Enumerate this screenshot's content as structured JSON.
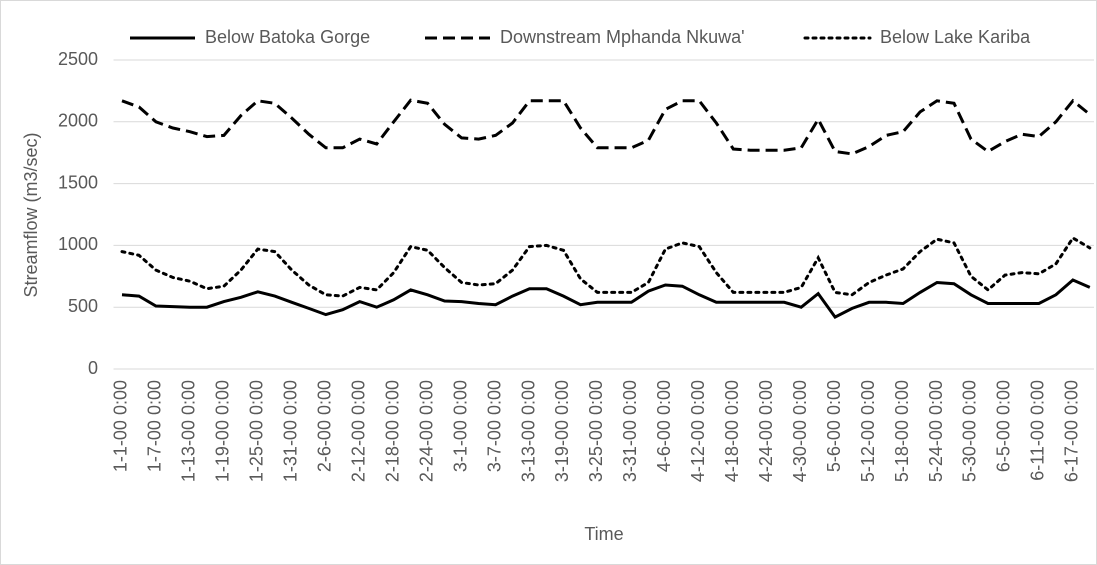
{
  "chart_data": {
    "type": "line",
    "ylabel": "Streamflow (m3/sec)",
    "xlabel": "Time",
    "categories": [
      "1-1-00 0:00",
      null,
      "1-7-00 0:00",
      null,
      "1-13-00 0:00",
      null,
      "1-19-00 0:00",
      null,
      "1-25-00 0:00",
      null,
      "1-31-00 0:00",
      null,
      "2-6-00 0:00",
      null,
      "2-12-00 0:00",
      null,
      "2-18-00 0:00",
      null,
      "2-24-00 0:00",
      null,
      "3-1-00 0:00",
      null,
      "3-7-00 0:00",
      null,
      "3-13-00 0:00",
      null,
      "3-19-00 0:00",
      null,
      "3-25-00 0:00",
      null,
      "3-31-00 0:00",
      null,
      "4-6-00 0:00",
      null,
      "4-12-00 0:00",
      null,
      "4-18-00 0:00",
      null,
      "4-24-00 0:00",
      null,
      "4-30-00 0:00",
      null,
      "5-6-00 0:00",
      null,
      "5-12-00 0:00",
      null,
      "5-18-00 0:00",
      null,
      "5-24-00 0:00",
      null,
      "5-30-00 0:00",
      null,
      "6-5-00 0:00",
      null,
      "6-11-00 0:00",
      null,
      "6-17-00 0:00",
      null
    ],
    "series": [
      {
        "name": "Below Batoka Gorge",
        "color": "#000000",
        "dash": "solid",
        "values": [
          600,
          590,
          510,
          505,
          500,
          500,
          545,
          580,
          625,
          590,
          540,
          490,
          440,
          480,
          545,
          500,
          560,
          640,
          600,
          550,
          545,
          530,
          520,
          590,
          650,
          650,
          590,
          520,
          540,
          540,
          540,
          630,
          680,
          670,
          600,
          540,
          540,
          540,
          540,
          540,
          500,
          610,
          420,
          490,
          540,
          540,
          530,
          620,
          700,
          690,
          600,
          530,
          530,
          530,
          530,
          600,
          720,
          660
        ]
      },
      {
        "name": "Downstream Mphanda Nkuwa'",
        "color": "#000000",
        "dash": "dashed",
        "values": [
          2170,
          2120,
          2000,
          1950,
          1920,
          1880,
          1890,
          2050,
          2170,
          2150,
          2030,
          1900,
          1790,
          1790,
          1860,
          1820,
          2000,
          2175,
          2150,
          1980,
          1870,
          1860,
          1890,
          1990,
          2170,
          2170,
          2170,
          1950,
          1790,
          1790,
          1790,
          1850,
          2100,
          2170,
          2170,
          1990,
          1780,
          1770,
          1770,
          1770,
          1790,
          2020,
          1760,
          1740,
          1800,
          1890,
          1920,
          2080,
          2170,
          2150,
          1860,
          1760,
          1840,
          1900,
          1880,
          2000,
          2170,
          2060
        ]
      },
      {
        "name": "Below Lake Kariba",
        "color": "#000000",
        "dash": "dotted",
        "values": [
          950,
          920,
          800,
          740,
          710,
          650,
          670,
          800,
          970,
          950,
          800,
          680,
          600,
          590,
          660,
          640,
          780,
          990,
          960,
          820,
          700,
          680,
          690,
          800,
          990,
          1000,
          960,
          730,
          620,
          620,
          620,
          700,
          970,
          1020,
          990,
          780,
          620,
          620,
          620,
          620,
          660,
          900,
          620,
          600,
          700,
          760,
          810,
          950,
          1050,
          1020,
          750,
          640,
          760,
          780,
          770,
          850,
          1060,
          980
        ]
      }
    ],
    "ylim": [
      0,
      2500
    ],
    "yticks": [
      0,
      500,
      1000,
      1500,
      2000,
      2500
    ],
    "grid": true
  }
}
